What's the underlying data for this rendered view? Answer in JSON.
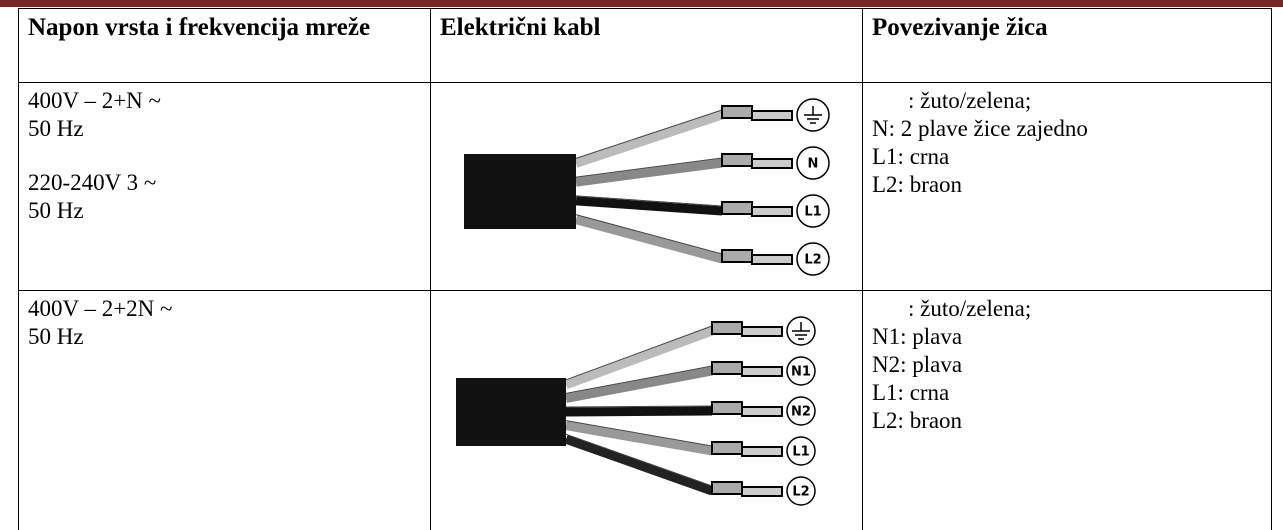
{
  "table": {
    "header": [
      "Napon vrsta i frekvencija mreže",
      "Električni kabl",
      "Povezivanje žica"
    ],
    "rows": [
      {
        "voltage_groups": [
          [
            "400V – 2+N ~",
            "50 Hz"
          ],
          [
            "220-240V 3 ~",
            "50 Hz"
          ]
        ],
        "cable_terminals": [
          "N",
          "L1",
          "L2"
        ],
        "wiring": [
          ": žuto/zelena;",
          "N: 2 plave žice zajedno",
          "L1: crna",
          "L2: braon"
        ]
      },
      {
        "voltage_groups": [
          [
            "400V – 2+2N ~",
            "50 Hz"
          ]
        ],
        "cable_terminals": [
          "N1",
          "N2",
          "L1",
          "L2"
        ],
        "wiring": [
          ": žuto/zelena;",
          "N1: plava",
          "N2: plava",
          "L1: crna",
          "L2: braon"
        ]
      }
    ]
  }
}
